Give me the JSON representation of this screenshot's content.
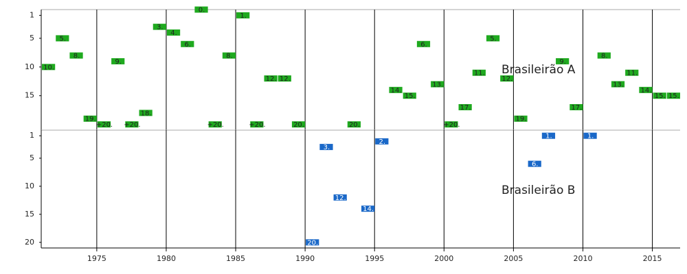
{
  "chart_data": [
    {
      "type": "timeline",
      "title": "Brasileirão A",
      "color": "#1faa1f",
      "x": [
        1971,
        1972,
        1973,
        1974,
        1975,
        1976,
        1977,
        1978,
        1979,
        1980,
        1981,
        1982,
        1983,
        1984,
        1985,
        1986,
        1987,
        1988,
        1989,
        1993,
        1996,
        1997,
        1998,
        1999,
        2000,
        2001,
        2002,
        2003,
        2004,
        2005,
        2008,
        2009,
        2011,
        2012,
        2013,
        2014,
        2015,
        2016
      ],
      "values": [
        10,
        5,
        8,
        19,
        20,
        9,
        20,
        18,
        3,
        4,
        6,
        0,
        20,
        8,
        1,
        20,
        12,
        12,
        20,
        20,
        14,
        15,
        6,
        13,
        20,
        17,
        11,
        5,
        12,
        19,
        9,
        17,
        8,
        13,
        11,
        14,
        15,
        15
      ],
      "value_labels": [
        "10.",
        "5.",
        "8.",
        "19.",
        "+20.",
        "9.",
        "+20.",
        "18.",
        "3.",
        "4.",
        "6.",
        "0.",
        "+20.",
        "8.",
        "1.",
        "+20.",
        "12.",
        "12.",
        "20.",
        "20.",
        "14.",
        "15.",
        "6.",
        "13.",
        "+20.",
        "17.",
        "11.",
        "5.",
        "12.",
        "19.",
        "9.",
        "17.",
        "8.",
        "13.",
        "11.",
        "14.",
        "15.",
        "15."
      ],
      "xlim": [
        1971,
        2017
      ],
      "xticks": [
        1975,
        1980,
        1985,
        1990,
        1995,
        2000,
        2005,
        2010,
        2015
      ],
      "ylim": [
        0,
        21
      ],
      "yticks": [
        1,
        5,
        10,
        15
      ]
    },
    {
      "type": "timeline",
      "title": "Brasileirão B",
      "color": "#1a68c8",
      "x": [
        1990,
        1991,
        1992,
        1994,
        1995,
        2006,
        2007,
        2010
      ],
      "values": [
        20,
        3,
        12,
        14,
        2,
        6,
        1,
        1
      ],
      "value_labels": [
        "20.",
        "3.",
        "12.",
        "14.",
        "2.",
        "6.",
        "1.",
        "1."
      ],
      "xlim": [
        1971,
        2017
      ],
      "xticks": [
        1975,
        1980,
        1985,
        1990,
        1995,
        2000,
        2005,
        2010,
        2015
      ],
      "ylim": [
        0,
        21
      ],
      "yticks": [
        1,
        5,
        10,
        15,
        20
      ]
    }
  ]
}
